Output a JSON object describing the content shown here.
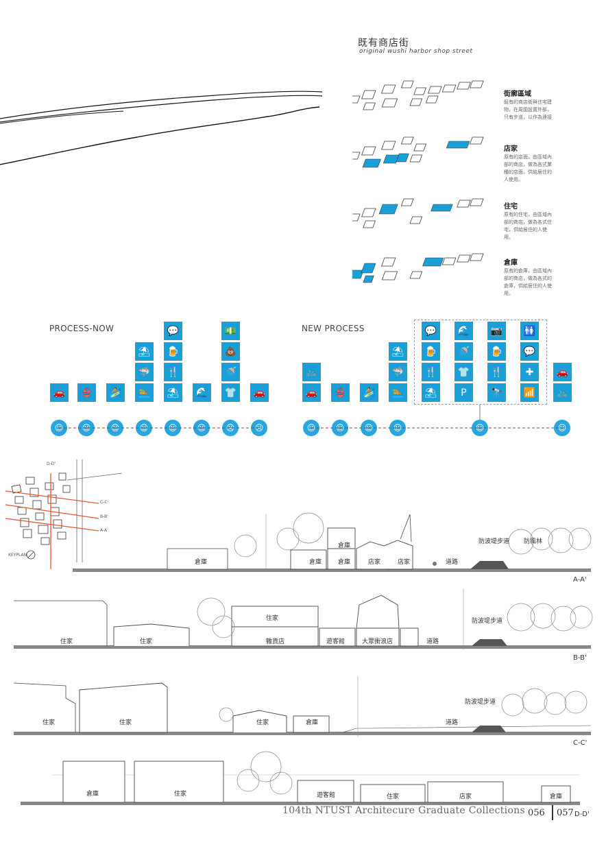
{
  "header": {
    "title_cn": "既有商店街",
    "subtitle": "original wushi harbor shop street"
  },
  "blocks": [
    {
      "label": "街廓區域",
      "desc": "既有的商店街與住宅建物，在周圍設置外部，只有步道，以作為連接"
    },
    {
      "label": "店家",
      "desc": "原有的店面，由區域內部的商店，做為各式業種的店面，供給居住的人使用。"
    },
    {
      "label": "住宅",
      "desc": "原有的住宅，由區域內部的商店，做為各式住宅，供給居住的人使用。"
    },
    {
      "label": "倉庫",
      "desc": "原有的倉庫，由區域內部的商店，做為各式的倉庫，供給居住的人使用。"
    }
  ],
  "process_now": {
    "title": "PROCESS-NOW",
    "columns": [
      {
        "icons": [
          "car-icon"
        ],
        "mood": "happy"
      },
      {
        "icons": [
          "bikini-icon"
        ],
        "mood": "happy"
      },
      {
        "icons": [
          "surf-rent-icon"
        ],
        "mood": "happy"
      },
      {
        "icons": [
          "swim-icon",
          "shark-icon",
          "beach-chair-icon"
        ],
        "mood": "happy"
      },
      {
        "icons": [
          "beach-chair-icon",
          "cutlery-icon",
          "beer-icon",
          "chat-icon"
        ],
        "mood": "happy"
      },
      {
        "icons": [
          "surfer-icon"
        ],
        "mood": "happy"
      },
      {
        "icons": [
          "tshirt-icon",
          "shower-icon",
          "poop-icon",
          "money-icon"
        ],
        "mood": "sad"
      },
      {
        "icons": [
          "car-icon"
        ],
        "mood": "sad"
      }
    ]
  },
  "new_process": {
    "title": "NEW PROCESS",
    "columns": [
      {
        "icons": [
          "car-icon",
          "bike-icon"
        ],
        "mood": "happy"
      },
      {
        "icons": [
          "bikini-icon"
        ],
        "mood": "happy"
      },
      {
        "icons": [
          "surf-rent-icon"
        ],
        "mood": "happy"
      },
      {
        "icons": [
          "swim-icon",
          "shark-icon",
          "beach-chair-icon"
        ],
        "mood": "happy"
      },
      {
        "icons": [
          "bike-icon",
          "car-icon"
        ],
        "mood": "happy"
      }
    ],
    "grouped": [
      [
        "beach-chair-icon",
        "cutlery-icon",
        "beer-icon",
        "chat-icon"
      ],
      [
        "parking-icon",
        "tshirt-icon",
        "shower-icon",
        "surfer-icon"
      ],
      [
        "telescope-icon",
        "cutlery-icon",
        "beer-icon",
        "camera-icon"
      ],
      [
        "wifi-icon",
        "first-aid-icon",
        "chat-icon",
        "restroom-icon"
      ]
    ]
  },
  "keyplan": {
    "label": "KEYPLAN",
    "lines": [
      "D-D'",
      "C-C'",
      "B-B'",
      "A-A'"
    ]
  },
  "sections": {
    "aa": {
      "name": "A-A'",
      "labels": [
        "倉庫",
        "倉庫",
        "倉庫",
        "倉庫",
        "店家",
        "店家",
        "道路",
        "防波堤步道",
        "防風林"
      ]
    },
    "bb": {
      "name": "B-B'",
      "labels": [
        "住家",
        "住家",
        "住家",
        "雜貨店",
        "遊客館",
        "大眾衝浪店",
        "道路",
        "防波堤步道"
      ]
    },
    "cc": {
      "name": "C-C'",
      "labels": [
        "住家",
        "住家",
        "住家",
        "倉庫",
        "道路",
        "防波堤步道"
      ]
    },
    "dd": {
      "name": "D-D'",
      "labels": [
        "倉庫",
        "住家",
        "遊客館",
        "住家",
        "店家",
        "倉庫"
      ]
    }
  },
  "footer": {
    "text": "104th NTUST Architecure Graduate Collections",
    "page_left": "056",
    "page_right": "057",
    "section_tag": "D-D'"
  },
  "colors": {
    "accent": "#1a9fd8",
    "section_key": "#e8552e"
  }
}
